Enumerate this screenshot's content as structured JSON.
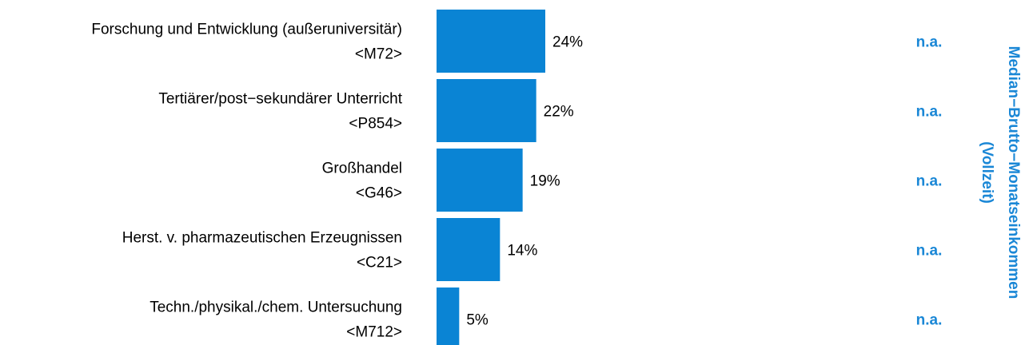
{
  "chart_data": {
    "type": "bar",
    "orientation": "horizontal",
    "categories": [
      {
        "name": "Forschung und Entwicklung (außeruniversitär)",
        "code": "<M72>"
      },
      {
        "name": "Tertiärer/post−sekundärer Unterricht",
        "code": "<P854>"
      },
      {
        "name": "Großhandel",
        "code": "<G46>"
      },
      {
        "name": "Herst. v. pharmazeutischen Erzeugnissen",
        "code": "<C21>"
      },
      {
        "name": "Techn./physikal./chem. Untersuchung",
        "code": "<M712>"
      }
    ],
    "values": [
      24,
      22,
      19,
      14,
      5
    ],
    "value_labels": [
      "24%",
      "22%",
      "19%",
      "14%",
      "5%"
    ],
    "median_income": [
      "n.a.",
      "n.a.",
      "n.a.",
      "n.a.",
      "n.a."
    ],
    "side_title_lines": [
      "Median−Brutto−Monatseinkommen",
      "(Vollzeit)"
    ],
    "xlim": [
      0,
      24
    ],
    "grid": false,
    "legend": "none"
  },
  "colors": {
    "bar": "#0a84d4",
    "accent": "#1a87d6",
    "text": "#000000"
  }
}
